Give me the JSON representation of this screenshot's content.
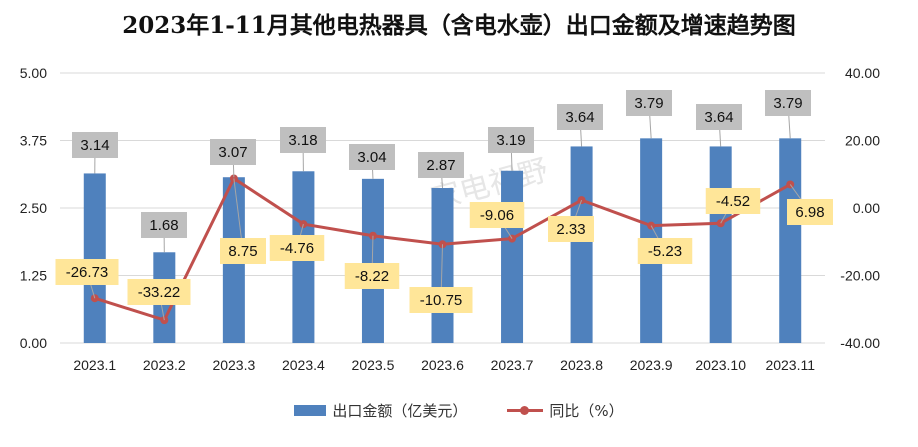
{
  "chart_data": {
    "type": "bar+line",
    "title": "2023年1-11月其他电热器具（含电水壶）出口金额及增速趋势图",
    "categories": [
      "2023.1",
      "2023.2",
      "2023.3",
      "2023.4",
      "2023.5",
      "2023.6",
      "2023.7",
      "2023.8",
      "2023.9",
      "2023.10",
      "2023.11"
    ],
    "series": [
      {
        "name": "出口金额（亿美元）",
        "type": "bar",
        "axis": "left",
        "color": "#4F81BD",
        "values": [
          3.14,
          1.68,
          3.07,
          3.18,
          3.04,
          2.87,
          3.19,
          3.64,
          3.79,
          3.64,
          3.79
        ]
      },
      {
        "name": "同比（%）",
        "type": "line",
        "axis": "right",
        "color": "#C0504D",
        "values": [
          -26.73,
          -33.22,
          8.75,
          -4.76,
          -8.22,
          -10.75,
          -9.06,
          2.33,
          -5.23,
          -4.52,
          6.98
        ]
      }
    ],
    "left_axis": {
      "ylim": [
        0,
        5
      ],
      "ticks": [
        "0.00",
        "1.25",
        "2.50",
        "3.75",
        "5.00"
      ]
    },
    "right_axis": {
      "ylim": [
        -40,
        40
      ],
      "ticks": [
        "-40.00",
        "-20.00",
        "0.00",
        "20.00",
        "40.00"
      ]
    },
    "grid": "horizontal",
    "legend": "bottom",
    "watermark": "家电视野"
  }
}
